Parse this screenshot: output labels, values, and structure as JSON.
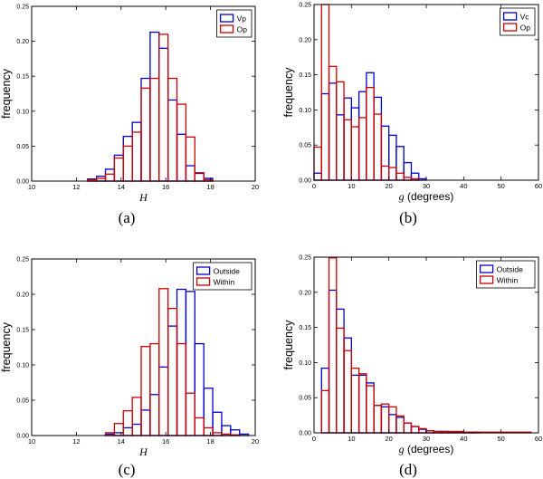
{
  "colors": {
    "blue": "#0000cc",
    "red": "#cc0000",
    "axis": "#000000"
  },
  "chart_data": [
    {
      "type": "bar",
      "subtype": "histogram",
      "caption": "(a)",
      "xlabel": "H",
      "ylabel": "frequency",
      "xlim": [
        10,
        20
      ],
      "ylim": [
        0,
        0.25
      ],
      "xticks": [
        10,
        12,
        14,
        16,
        18,
        20
      ],
      "yticks": [
        0.0,
        0.05,
        0.1,
        0.15,
        0.2,
        0.25
      ],
      "bin_edges": [
        12.5,
        12.9,
        13.3,
        13.7,
        14.1,
        14.5,
        14.9,
        15.3,
        15.7,
        16.1,
        16.5,
        16.9,
        17.3,
        17.7,
        18.1
      ],
      "legend": "top-right",
      "series": [
        {
          "name": "Vp",
          "color": "blue",
          "values": [
            0.003,
            0.007,
            0.017,
            0.037,
            0.064,
            0.084,
            0.147,
            0.213,
            0.19,
            0.116,
            0.067,
            0.022,
            0.011,
            0.004
          ]
        },
        {
          "name": "Op",
          "color": "red",
          "values": [
            0.002,
            0.004,
            0.01,
            0.033,
            0.05,
            0.07,
            0.133,
            0.147,
            0.21,
            0.147,
            0.11,
            0.063,
            0.012,
            0.002
          ]
        }
      ]
    },
    {
      "type": "bar",
      "subtype": "histogram",
      "caption": "(b)",
      "xlabel": "g (degrees)",
      "ylabel": "frequency",
      "xlim": [
        0,
        60
      ],
      "ylim": [
        0,
        0.25
      ],
      "xticks": [
        0,
        10,
        20,
        30,
        40,
        50,
        60
      ],
      "yticks": [
        0.0,
        0.05,
        0.1,
        0.15,
        0.2,
        0.25
      ],
      "bin_edges": [
        0,
        2,
        4,
        6,
        8,
        10,
        12,
        14,
        16,
        18,
        20,
        22,
        24,
        26,
        28,
        30
      ],
      "legend": "top-right",
      "series": [
        {
          "name": "Vc",
          "color": "blue",
          "values": [
            0.01,
            0.123,
            0.138,
            0.093,
            0.117,
            0.103,
            0.126,
            0.153,
            0.118,
            0.077,
            0.064,
            0.048,
            0.025,
            0.01,
            0.002
          ]
        },
        {
          "name": "Op",
          "color": "red",
          "values": [
            0.047,
            0.25,
            0.162,
            0.14,
            0.086,
            0.076,
            0.089,
            0.132,
            0.094,
            0.02,
            0.018,
            0.01,
            0.004,
            0.002,
            0.0
          ]
        }
      ]
    },
    {
      "type": "bar",
      "subtype": "histogram",
      "caption": "(c)",
      "xlabel": "H",
      "ylabel": "frequency",
      "xlim": [
        10,
        20
      ],
      "ylim": [
        0,
        0.25
      ],
      "xticks": [
        10,
        12,
        14,
        16,
        18,
        20
      ],
      "yticks": [
        0.0,
        0.05,
        0.1,
        0.15,
        0.2,
        0.25
      ],
      "bin_edges": [
        13.3,
        13.7,
        14.1,
        14.5,
        14.9,
        15.3,
        15.7,
        16.1,
        16.5,
        16.9,
        17.3,
        17.7,
        18.1,
        18.5,
        18.9,
        19.3,
        19.7
      ],
      "legend": "top-right",
      "series": [
        {
          "name": "Outside",
          "color": "blue",
          "values": [
            0.002,
            0.004,
            0.011,
            0.016,
            0.036,
            0.058,
            0.097,
            0.155,
            0.207,
            0.204,
            0.13,
            0.067,
            0.033,
            0.014,
            0.008,
            0.002
          ]
        },
        {
          "name": "Within",
          "color": "red",
          "values": [
            0.004,
            0.017,
            0.035,
            0.054,
            0.126,
            0.13,
            0.208,
            0.18,
            0.13,
            0.06,
            0.025,
            0.011,
            0.004,
            0.002,
            0.001,
            0.0
          ]
        }
      ]
    },
    {
      "type": "bar",
      "subtype": "histogram",
      "caption": "(d)",
      "xlabel": "g (degrees)",
      "ylabel": "frequency",
      "xlim": [
        0,
        60
      ],
      "ylim": [
        0,
        0.25
      ],
      "xticks": [
        0,
        10,
        20,
        30,
        40,
        50,
        60
      ],
      "yticks": [
        0.0,
        0.05,
        0.1,
        0.15,
        0.2,
        0.25
      ],
      "bin_edges": [
        2,
        4,
        6,
        8,
        10,
        12,
        14,
        16,
        18,
        20,
        22,
        24,
        26,
        28,
        30,
        32,
        34,
        36,
        38,
        40,
        42,
        44,
        46,
        48,
        50,
        52,
        54,
        56,
        58
      ],
      "legend": "top-right",
      "series": [
        {
          "name": "Outside",
          "color": "blue",
          "values": [
            0.092,
            0.203,
            0.176,
            0.135,
            0.082,
            0.082,
            0.071,
            0.039,
            0.037,
            0.026,
            0.022,
            0.014,
            0.009,
            0.005,
            0.003,
            0.002,
            0.002,
            0.001,
            0.001,
            0.001,
            0.001,
            0.0,
            0.0,
            0.0,
            0.0,
            0.0,
            0.0,
            0.0
          ]
        },
        {
          "name": "Within",
          "color": "red",
          "values": [
            0.06,
            0.249,
            0.149,
            0.117,
            0.092,
            0.084,
            0.067,
            0.039,
            0.041,
            0.037,
            0.024,
            0.014,
            0.009,
            0.006,
            0.003,
            0.002,
            0.002,
            0.002,
            0.002,
            0.001,
            0.001,
            0.001,
            0.001,
            0.001,
            0.001,
            0.001,
            0.001,
            0.001
          ]
        }
      ]
    }
  ]
}
